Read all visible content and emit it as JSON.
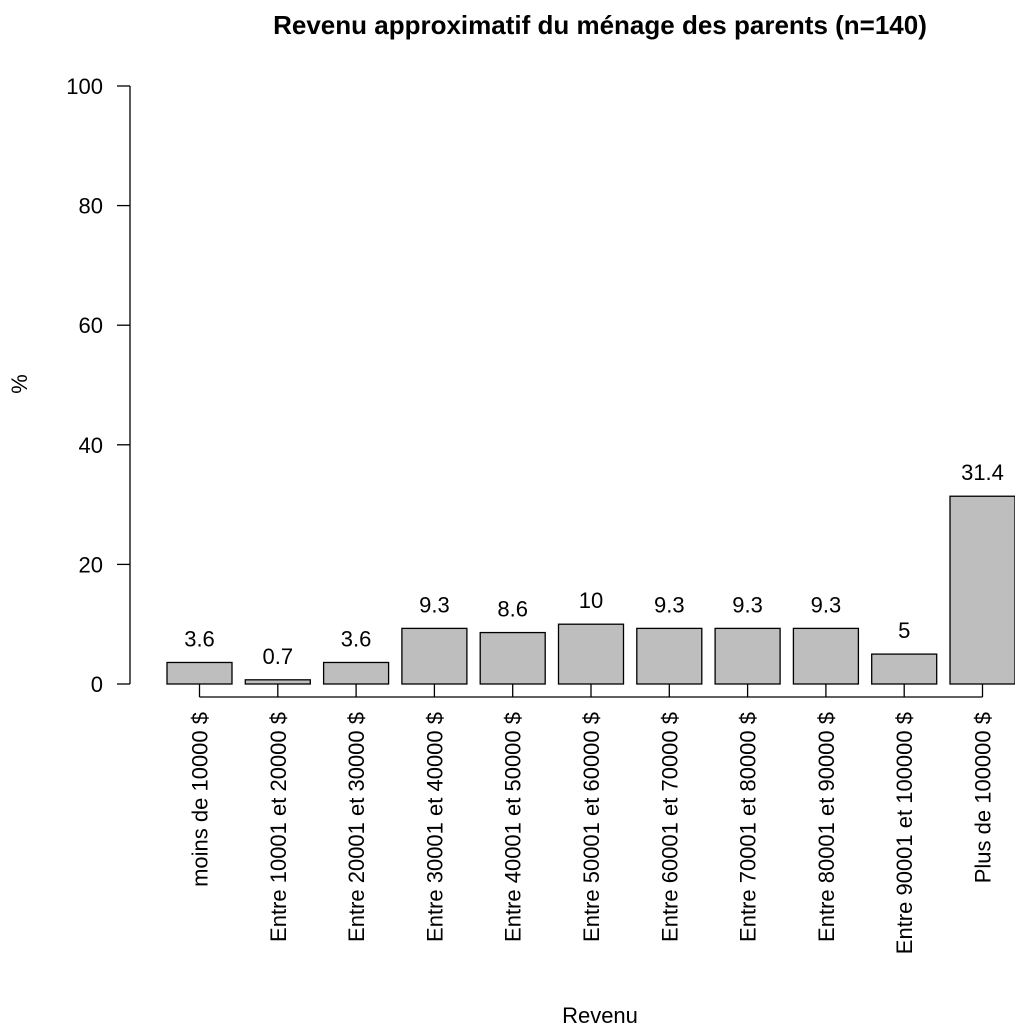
{
  "chart_data": {
    "type": "bar",
    "title": "Revenu approximatif du ménage des parents (n=140)",
    "xlabel": "Revenu",
    "ylabel": "%",
    "ylim": [
      0,
      100
    ],
    "yticks": [
      0,
      20,
      40,
      60,
      80,
      100
    ],
    "categories": [
      "moins de 10000 $",
      "Entre 10001 et 20000 $",
      "Entre 20001 et 30000 $",
      "Entre 30001 et 40000 $",
      "Entre 40001 et 50000 $",
      "Entre 50001 et 60000 $",
      "Entre 60001 et 70000 $",
      "Entre 70001 et 80000 $",
      "Entre 80001 et 90000 $",
      "Entre 90001 et 100000 $",
      "Plus de 100000 $"
    ],
    "values": [
      3.6,
      0.7,
      3.6,
      9.3,
      8.6,
      10,
      9.3,
      9.3,
      9.3,
      5,
      31.4
    ],
    "data_labels": [
      "3.6",
      "0.7",
      "3.6",
      "9.3",
      "8.6",
      "10",
      "9.3",
      "9.3",
      "9.3",
      "5",
      "31.4"
    ],
    "bar_color": "#bebebe",
    "grid": false
  }
}
